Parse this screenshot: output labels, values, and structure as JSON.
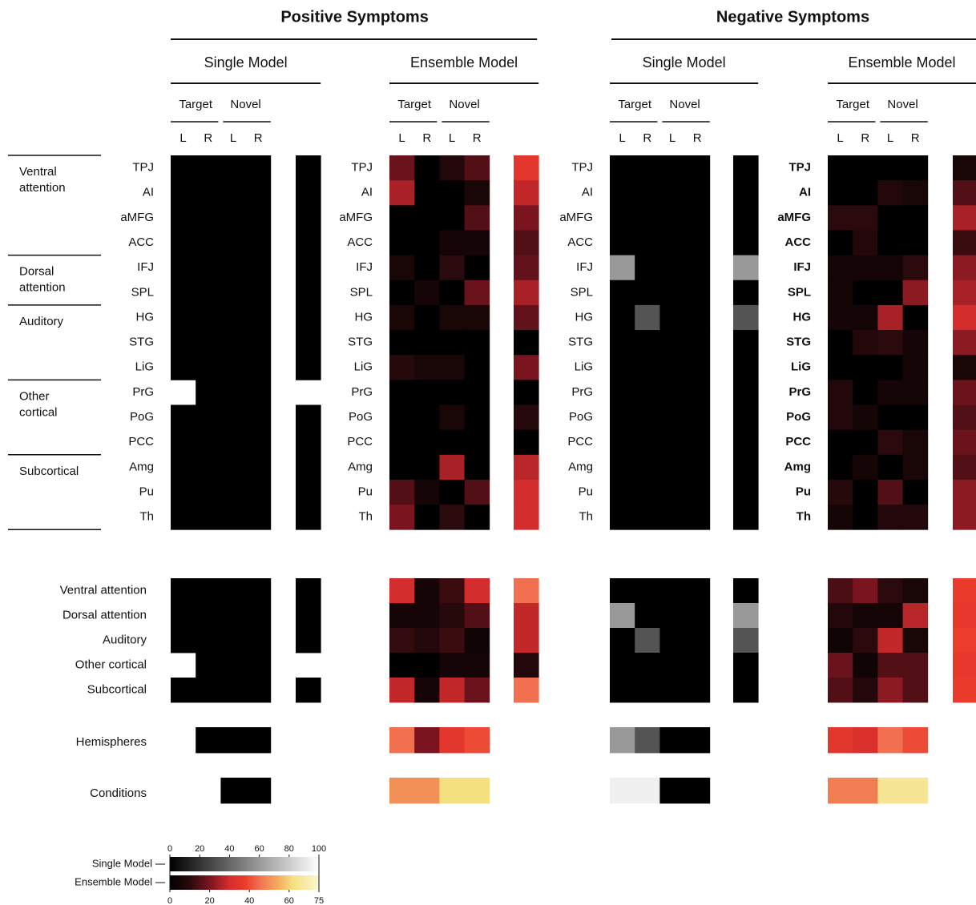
{
  "chart_data": {
    "type": "heatmap",
    "conditions": [
      "Target",
      "Novel"
    ],
    "hemispheres": [
      "L",
      "R",
      "L",
      "R"
    ],
    "regions": [
      "TPJ",
      "AI",
      "aMFG",
      "ACC",
      "IFJ",
      "SPL",
      "HG",
      "STG",
      "LiG",
      "PrG",
      "PoG",
      "PCC",
      "Amg",
      "Pu",
      "Th"
    ],
    "networks": [
      "Ventral attention",
      "Dorsal attention",
      "Auditory",
      "Other cortical",
      "Subcortical"
    ],
    "network_sizes": [
      4,
      2,
      3,
      3,
      3
    ],
    "hemispheres_label": "Hemispheres",
    "conditions_label": "Conditions",
    "scales": {
      "single": {
        "name": "Single Model",
        "range": [
          0,
          100
        ],
        "ticks": [
          0,
          20,
          40,
          60,
          80,
          100
        ],
        "stops": [
          [
            0,
            "#000000"
          ],
          [
            100,
            "#ffffff"
          ]
        ]
      },
      "ensemble": {
        "name": "Ensemble Model",
        "range": [
          0,
          75
        ],
        "ticks": [
          0,
          20,
          40,
          60,
          75
        ],
        "stops": [
          [
            0,
            "#000000"
          ],
          [
            10,
            "#2a0a0c"
          ],
          [
            20,
            "#7a1520"
          ],
          [
            30,
            "#d42d2d"
          ],
          [
            38,
            "#ec3c2c"
          ],
          [
            45,
            "#f07050"
          ],
          [
            55,
            "#f5b060"
          ],
          [
            62,
            "#f5e080"
          ],
          [
            75,
            "#fbf7d0"
          ]
        ]
      }
    },
    "groups": [
      {
        "title": "Positive Symptoms",
        "models": [
          {
            "title": "Single Model",
            "scale": "single",
            "regions": [
              [
                0,
                0,
                0,
                0
              ],
              [
                0,
                0,
                0,
                0
              ],
              [
                0,
                0,
                0,
                0
              ],
              [
                0,
                0,
                0,
                0
              ],
              [
                0,
                0,
                0,
                0
              ],
              [
                0,
                0,
                0,
                0
              ],
              [
                0,
                0,
                0,
                0
              ],
              [
                0,
                0,
                0,
                0
              ],
              [
                0,
                0,
                0,
                0
              ],
              [
                null,
                0,
                0,
                0
              ],
              [
                0,
                0,
                0,
                0
              ],
              [
                0,
                0,
                0,
                0
              ],
              [
                0,
                0,
                0,
                0
              ],
              [
                0,
                0,
                0,
                0
              ],
              [
                0,
                0,
                0,
                0
              ]
            ],
            "region_summary": [
              0,
              0,
              0,
              0,
              0,
              0,
              0,
              0,
              0,
              null,
              0,
              0,
              0,
              0,
              0
            ],
            "networks": [
              [
                0,
                0,
                0,
                0
              ],
              [
                0,
                0,
                0,
                0
              ],
              [
                0,
                0,
                0,
                0
              ],
              [
                null,
                0,
                0,
                0
              ],
              [
                0,
                0,
                0,
                0
              ]
            ],
            "network_summary": [
              0,
              0,
              0,
              null,
              0
            ],
            "hemisphere_values": [
              null,
              0,
              0,
              0
            ],
            "condition_values": [
              null,
              0
            ]
          },
          {
            "title": "Ensemble Model",
            "scale": "ensemble",
            "regions": [
              [
                18,
                0,
                8,
                15
              ],
              [
                25,
                0,
                0,
                6
              ],
              [
                0,
                0,
                0,
                15
              ],
              [
                0,
                0,
                5,
                5
              ],
              [
                6,
                0,
                10,
                0
              ],
              [
                0,
                5,
                0,
                18
              ],
              [
                6,
                0,
                6,
                6
              ],
              [
                0,
                0,
                0,
                0
              ],
              [
                9,
                6,
                6,
                0
              ],
              [
                0,
                0,
                0,
                0
              ],
              [
                0,
                0,
                6,
                0
              ],
              [
                0,
                0,
                0,
                0
              ],
              [
                0,
                0,
                25,
                0
              ],
              [
                15,
                5,
                0,
                15
              ],
              [
                20,
                0,
                10,
                0
              ]
            ],
            "region_summary": [
              35,
              28,
              20,
              15,
              17,
              25,
              17,
              0,
              20,
              0,
              9,
              0,
              27,
              30,
              30
            ],
            "networks": [
              [
                30,
                5,
                12,
                30
              ],
              [
                5,
                5,
                9,
                15
              ],
              [
                11,
                8,
                12,
                4
              ],
              [
                0,
                0,
                5,
                5
              ],
              [
                28,
                5,
                28,
                18
              ]
            ],
            "network_summary": [
              45,
              28,
              28,
              8,
              45
            ],
            "hemisphere_values": [
              45,
              20,
              35,
              40
            ],
            "condition_values": [
              50,
              62
            ]
          }
        ]
      },
      {
        "title": "Negative Symptoms",
        "models": [
          {
            "title": "Single Model",
            "scale": "single",
            "regions": [
              [
                0,
                0,
                0,
                0
              ],
              [
                0,
                0,
                0,
                0
              ],
              [
                0,
                0,
                0,
                0
              ],
              [
                0,
                0,
                0,
                0
              ],
              [
                60,
                0,
                0,
                0
              ],
              [
                0,
                0,
                0,
                0
              ],
              [
                0,
                33,
                0,
                0
              ],
              [
                0,
                0,
                0,
                0
              ],
              [
                0,
                0,
                0,
                0
              ],
              [
                0,
                0,
                0,
                0
              ],
              [
                0,
                0,
                0,
                0
              ],
              [
                0,
                0,
                0,
                0
              ],
              [
                0,
                0,
                0,
                0
              ],
              [
                0,
                0,
                0,
                0
              ],
              [
                0,
                0,
                0,
                0
              ]
            ],
            "region_summary": [
              0,
              0,
              0,
              0,
              60,
              0,
              33,
              0,
              0,
              0,
              0,
              0,
              0,
              0,
              0
            ],
            "networks": [
              [
                0,
                0,
                0,
                0
              ],
              [
                60,
                0,
                0,
                0
              ],
              [
                0,
                33,
                0,
                0
              ],
              [
                0,
                0,
                0,
                0
              ],
              [
                0,
                0,
                0,
                0
              ]
            ],
            "network_summary": [
              0,
              60,
              33,
              0,
              0
            ],
            "hemisphere_values": [
              60,
              33,
              0,
              0
            ],
            "condition_values": [
              94,
              0
            ]
          },
          {
            "title": "Ensemble Model",
            "scale": "ensemble",
            "regions": [
              [
                0,
                0,
                0,
                0
              ],
              [
                0,
                0,
                8,
                6
              ],
              [
                10,
                10,
                0,
                0
              ],
              [
                0,
                8,
                0,
                0
              ],
              [
                5,
                5,
                5,
                10
              ],
              [
                5,
                0,
                0,
                22
              ],
              [
                5,
                5,
                25,
                0
              ],
              [
                0,
                8,
                10,
                5
              ],
              [
                0,
                0,
                0,
                5
              ],
              [
                8,
                0,
                5,
                5
              ],
              [
                8,
                5,
                0,
                0
              ],
              [
                0,
                0,
                10,
                6
              ],
              [
                0,
                5,
                0,
                6
              ],
              [
                9,
                0,
                15,
                0
              ],
              [
                5,
                0,
                8,
                8
              ]
            ],
            "region_summary": [
              6,
              15,
              25,
              12,
              22,
              25,
              30,
              22,
              6,
              18,
              15,
              18,
              15,
              22,
              22
            ],
            "networks": [
              [
                14,
                20,
                10,
                6
              ],
              [
                8,
                5,
                5,
                27
              ],
              [
                4,
                10,
                28,
                6
              ],
              [
                18,
                4,
                15,
                15
              ],
              [
                15,
                8,
                22,
                15
              ]
            ],
            "network_summary": [
              37,
              36,
              38,
              36,
              37
            ],
            "hemisphere_values": [
              35,
              32,
              45,
              40
            ],
            "condition_values": [
              47,
              65
            ]
          }
        ]
      }
    ]
  }
}
